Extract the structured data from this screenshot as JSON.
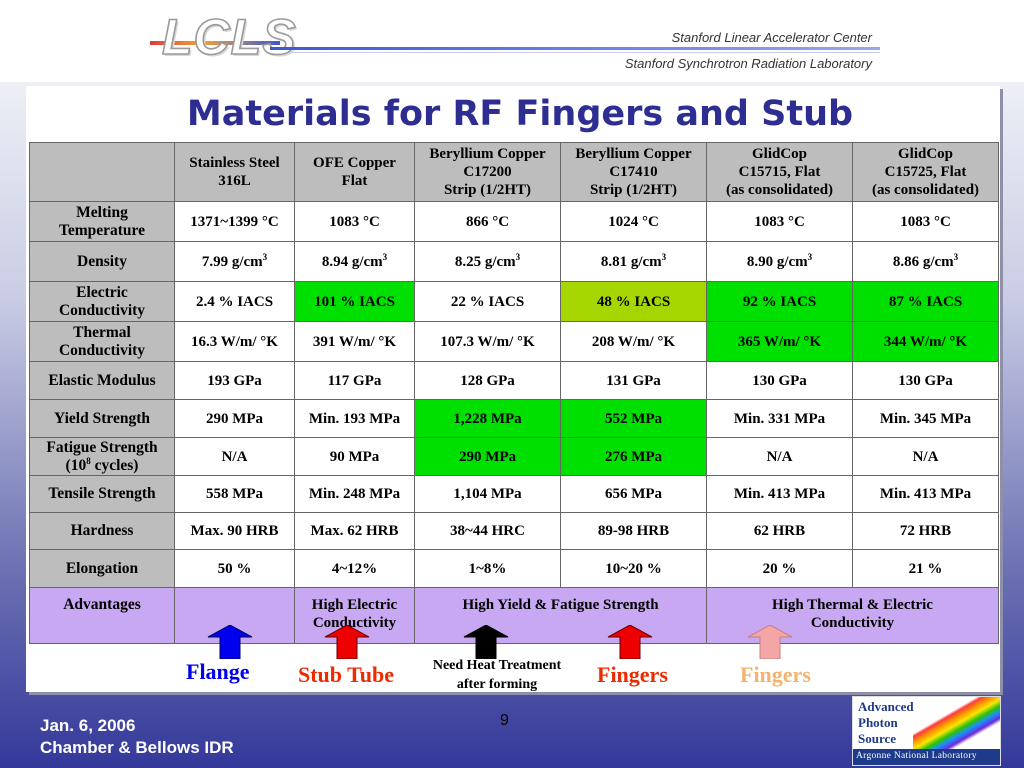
{
  "header": {
    "logo": "LCLS",
    "institution_1": "Stanford Linear Accelerator Center",
    "institution_2": "Stanford Synchrotron Radiation Laboratory"
  },
  "title": "Materials for RF Fingers and Stub",
  "table": {
    "columns": [
      [
        "Stainless Steel",
        "316L"
      ],
      [
        "OFE Copper",
        "Flat"
      ],
      [
        "Beryllium Copper",
        "C17200",
        "Strip (1/2HT)"
      ],
      [
        "Beryllium Copper",
        "C17410",
        "Strip (1/2HT)"
      ],
      [
        "GlidCop",
        "C15715, Flat",
        "(as consolidated)"
      ],
      [
        "GlidCop",
        "C15725, Flat",
        "(as consolidated)"
      ]
    ],
    "rows": [
      {
        "label": [
          "Melting",
          "Temperature"
        ],
        "values": [
          "1371~1399 °C",
          "1083 °C",
          "866 °C",
          "1024 °C",
          "1083 °C",
          "1083 °C"
        ]
      },
      {
        "label": [
          "Density"
        ],
        "values": [
          "7.99 g/cm",
          "8.94 g/cm",
          "8.25 g/cm",
          "8.81 g/cm",
          "8.90 g/cm",
          "8.86 g/cm"
        ],
        "sup": "3"
      },
      {
        "label": [
          "Electric",
          "Conductivity"
        ],
        "values": [
          "2.4 % IACS",
          "101 % IACS",
          "22 % IACS",
          "48 % IACS",
          "92 % IACS",
          "87 % IACS"
        ],
        "highlight": [
          "",
          "green",
          "",
          "yellowgreen",
          "green",
          "green"
        ]
      },
      {
        "label": [
          "Thermal",
          "Conductivity"
        ],
        "values": [
          "16.3 W/m/ °K",
          "391 W/m/ °K",
          "107.3 W/m/ °K",
          "208 W/m/ °K",
          "365 W/m/ °K",
          "344 W/m/ °K"
        ],
        "highlight": [
          "",
          "",
          "",
          "",
          "green",
          "green"
        ]
      },
      {
        "label": [
          "Elastic Modulus"
        ],
        "values": [
          "193 GPa",
          "117 GPa",
          "128 GPa",
          "131 GPa",
          "130 GPa",
          "130 GPa"
        ]
      },
      {
        "label": [
          "Yield Strength"
        ],
        "values": [
          "290 MPa",
          "Min. 193 MPa",
          "1,228 MPa",
          "552 MPa",
          "Min. 331 MPa",
          "Min. 345 MPa"
        ],
        "highlight": [
          "",
          "",
          "green",
          "green",
          "",
          ""
        ]
      },
      {
        "label": [
          "Fatigue Strength",
          "(10",
          "8",
          " cycles)"
        ],
        "values": [
          "N/A",
          "90 MPa",
          "290 MPa",
          "276 MPa",
          "N/A",
          "N/A"
        ],
        "highlight": [
          "",
          "",
          "green",
          "green",
          "",
          ""
        ]
      },
      {
        "label": [
          "Tensile Strength"
        ],
        "values": [
          "558 MPa",
          "Min. 248 MPa",
          "1,104 MPa",
          "656 MPa",
          "Min. 413 MPa",
          "Min. 413 MPa"
        ]
      },
      {
        "label": [
          "Hardness"
        ],
        "values": [
          "Max. 90 HRB",
          "Max. 62 HRB",
          "38~44 HRC",
          "89-98 HRB",
          "62 HRB",
          "72 HRB"
        ]
      },
      {
        "label": [
          "Elongation"
        ],
        "values": [
          "50 %",
          "4~12%",
          "1~8%",
          "10~20 %",
          "20 %",
          "21 %"
        ]
      }
    ],
    "advantages": {
      "label": "Advantages",
      "copper": [
        "High Electric",
        "Conductivity"
      ],
      "beryllium": "High Yield & Fatigue Strength",
      "glidcop": [
        "High Thermal & Electric",
        "Conductivity"
      ]
    }
  },
  "colors": {
    "green": "#00e000",
    "yellowgreen": "#a6d600",
    "advantages": "#c8a8f2",
    "header_gray": "#bdbdbd"
  },
  "arrows": [
    {
      "name": "flange",
      "label": "Flange",
      "color": "#0000ee"
    },
    {
      "name": "stub-tube",
      "label": "Stub Tube",
      "color": "#ee0000"
    },
    {
      "name": "heat-treatment",
      "label": [
        "Need Heat Treatment",
        "after forming"
      ],
      "color": "#000000"
    },
    {
      "name": "fingers-1",
      "label": "Fingers",
      "color": "#ee0000"
    },
    {
      "name": "fingers-2",
      "label": "Fingers",
      "color": "#f4a6a6"
    }
  ],
  "footer": {
    "date": "Jan. 6, 2006",
    "event": "Chamber & Bellows IDR",
    "page": "9"
  },
  "aps_logo": {
    "line1": "Advanced",
    "line2": "Photon",
    "line3": "Source",
    "lab": "Argonne National Laboratory"
  }
}
